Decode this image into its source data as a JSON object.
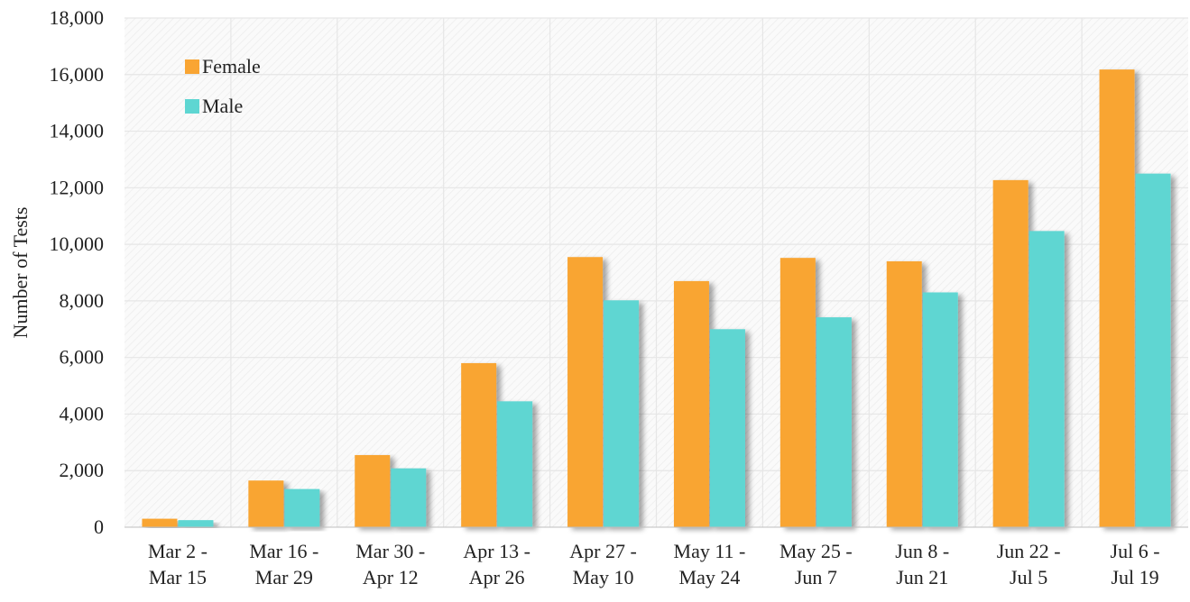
{
  "chart_data": {
    "type": "bar",
    "title": "",
    "xlabel": "",
    "ylabel": "Number of Tests",
    "ylim": [
      0,
      18000
    ],
    "yticks": [
      0,
      2000,
      4000,
      6000,
      8000,
      10000,
      12000,
      14000,
      16000,
      18000
    ],
    "ytick_labels": [
      "0",
      "2,000",
      "4,000",
      "6,000",
      "8,000",
      "10,000",
      "12,000",
      "14,000",
      "16,000",
      "18,000"
    ],
    "grid": true,
    "legend_position": "top-left",
    "categories": [
      [
        "Mar 2 -",
        "Mar 15"
      ],
      [
        "Mar 16 -",
        "Mar 29"
      ],
      [
        "Mar 30 -",
        "Apr 12"
      ],
      [
        "Apr 13 -",
        "Apr 26"
      ],
      [
        "Apr 27 -",
        "May 10"
      ],
      [
        "May 11 -",
        "May 24"
      ],
      [
        "May 25 -",
        "Jun 7"
      ],
      [
        "Jun 8 -",
        "Jun 21"
      ],
      [
        "Jun 22 -",
        "Jul 5"
      ],
      [
        "Jul 6 -",
        "Jul 19"
      ]
    ],
    "series": [
      {
        "name": "Female",
        "color": "#F9A533",
        "values": [
          300,
          1650,
          2550,
          5800,
          9550,
          8700,
          9520,
          9400,
          12270,
          16180
        ]
      },
      {
        "name": "Male",
        "color": "#5ED6D2",
        "values": [
          250,
          1350,
          2080,
          4450,
          8020,
          7000,
          7420,
          8300,
          10470,
          12500
        ]
      }
    ]
  }
}
